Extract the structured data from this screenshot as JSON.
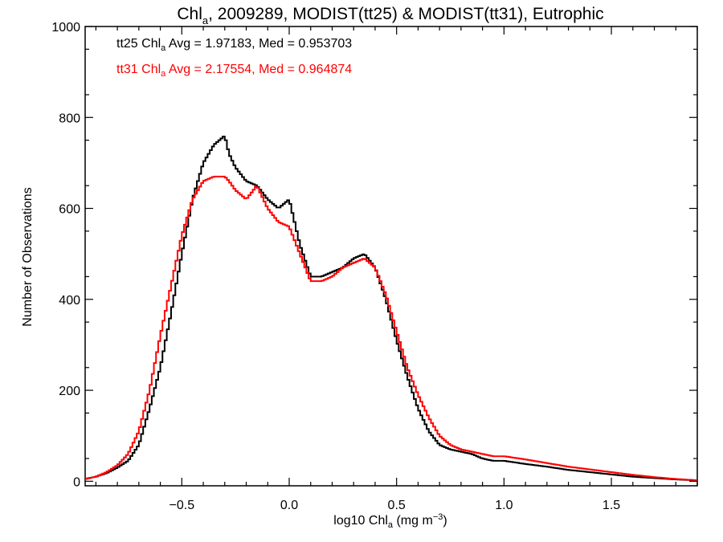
{
  "chart_data": {
    "type": "histogram-step",
    "title_parts": [
      "Chl",
      "a",
      ", 2009289, MODIST(tt25) & MODIST(tt31), Eutrophic"
    ],
    "xlabel_parts": [
      "log10 Chl",
      "a",
      " (mg m",
      "−3",
      ")"
    ],
    "ylabel": "Number of Observations",
    "xlim": [
      -0.95,
      1.9
    ],
    "ylim": [
      -10,
      1000
    ],
    "x_ticks": [
      -0.5,
      0.0,
      0.5,
      1.0,
      1.5
    ],
    "x_tick_labels": [
      "−0.5",
      "0.0",
      "0.5",
      "1.0",
      "1.5"
    ],
    "y_ticks": [
      0,
      200,
      400,
      600,
      800,
      1000
    ],
    "y_tick_labels": [
      "0",
      "200",
      "400",
      "600",
      "800",
      "1000"
    ],
    "series": [
      {
        "name": "tt25",
        "color": "#000000",
        "label_parts": [
          "tt25 Chl",
          "a",
          " Avg = 1.97183, Med = 0.953703"
        ],
        "x": [
          -0.95,
          -0.9,
          -0.85,
          -0.8,
          -0.75,
          -0.7,
          -0.65,
          -0.6,
          -0.55,
          -0.5,
          -0.45,
          -0.4,
          -0.35,
          -0.3,
          -0.28,
          -0.25,
          -0.2,
          -0.15,
          -0.1,
          -0.05,
          0.0,
          0.05,
          0.1,
          0.15,
          0.2,
          0.25,
          0.3,
          0.35,
          0.4,
          0.45,
          0.5,
          0.55,
          0.6,
          0.65,
          0.7,
          0.75,
          0.8,
          0.85,
          0.9,
          0.95,
          1.0,
          1.1,
          1.2,
          1.3,
          1.4,
          1.5,
          1.6,
          1.7,
          1.8,
          1.9
        ],
        "y": [
          5,
          10,
          18,
          30,
          45,
          80,
          160,
          250,
          370,
          500,
          620,
          700,
          740,
          760,
          720,
          690,
          660,
          650,
          620,
          600,
          620,
          520,
          450,
          450,
          460,
          470,
          490,
          500,
          470,
          400,
          310,
          230,
          160,
          110,
          80,
          70,
          65,
          60,
          50,
          45,
          45,
          38,
          32,
          25,
          20,
          15,
          10,
          7,
          4,
          2
        ]
      },
      {
        "name": "tt31",
        "color": "#ff0000",
        "label_parts": [
          "tt31 Chl",
          "a",
          " Avg = 2.17554, Med = 0.964874"
        ],
        "x": [
          -0.95,
          -0.9,
          -0.85,
          -0.8,
          -0.75,
          -0.7,
          -0.65,
          -0.6,
          -0.55,
          -0.5,
          -0.45,
          -0.4,
          -0.35,
          -0.3,
          -0.28,
          -0.25,
          -0.2,
          -0.15,
          -0.1,
          -0.05,
          0.0,
          0.05,
          0.1,
          0.15,
          0.2,
          0.25,
          0.3,
          0.35,
          0.4,
          0.45,
          0.5,
          0.55,
          0.6,
          0.65,
          0.7,
          0.75,
          0.8,
          0.85,
          0.9,
          0.95,
          1.0,
          1.1,
          1.2,
          1.3,
          1.4,
          1.5,
          1.6,
          1.7,
          1.8,
          1.9
        ],
        "y": [
          5,
          10,
          20,
          35,
          60,
          110,
          200,
          320,
          430,
          540,
          620,
          660,
          670,
          670,
          660,
          640,
          620,
          650,
          600,
          570,
          560,
          500,
          440,
          440,
          450,
          470,
          480,
          490,
          470,
          410,
          330,
          250,
          190,
          140,
          100,
          80,
          70,
          65,
          60,
          55,
          55,
          48,
          40,
          32,
          26,
          20,
          14,
          9,
          5,
          2
        ]
      }
    ]
  }
}
